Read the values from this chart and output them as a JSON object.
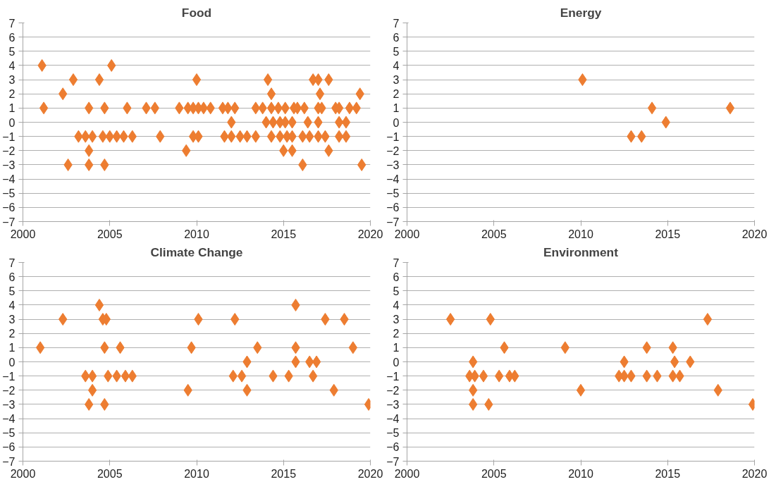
{
  "chart_data": [
    {
      "type": "scatter",
      "title": "Food",
      "marker": "diamond",
      "color": "#ed7d31",
      "grid": "y",
      "xlim": [
        2000,
        2020
      ],
      "xticks": [
        2000,
        2005,
        2010,
        2015,
        2020
      ],
      "ylim": [
        -7,
        7
      ],
      "yticks": [
        -7,
        -6,
        -5,
        -4,
        -3,
        -2,
        -1,
        0,
        1,
        2,
        3,
        4,
        5,
        6,
        7
      ],
      "x": [
        2001.1,
        2005.1,
        2002.9,
        2004.4,
        2010.0,
        2014.1,
        2016.7,
        2017.0,
        2017.6,
        2002.3,
        2014.3,
        2017.1,
        2019.4,
        2001.2,
        2003.8,
        2004.7,
        2006.0,
        2007.1,
        2007.6,
        2009.0,
        2009.5,
        2009.8,
        2010.1,
        2010.4,
        2010.8,
        2011.5,
        2011.8,
        2012.2,
        2013.4,
        2013.8,
        2014.3,
        2014.7,
        2015.1,
        2015.6,
        2015.8,
        2016.2,
        2017.0,
        2017.2,
        2018.0,
        2018.2,
        2018.8,
        2019.2,
        2012.0,
        2014.0,
        2014.4,
        2014.8,
        2015.1,
        2015.5,
        2016.4,
        2017.0,
        2018.2,
        2018.6,
        2003.2,
        2003.6,
        2004.0,
        2004.6,
        2005.0,
        2005.4,
        2005.8,
        2006.3,
        2007.9,
        2009.8,
        2010.1,
        2011.6,
        2012.0,
        2012.5,
        2012.9,
        2013.4,
        2014.3,
        2014.8,
        2015.2,
        2015.5,
        2016.1,
        2016.5,
        2017.0,
        2017.4,
        2018.2,
        2018.6,
        2003.8,
        2009.4,
        2015.0,
        2015.5,
        2017.6,
        2002.6,
        2003.8,
        2004.7,
        2016.1,
        2019.5
      ],
      "values": [
        4,
        4,
        3,
        3,
        3,
        3,
        3,
        3,
        3,
        2,
        2,
        2,
        2,
        1,
        1,
        1,
        1,
        1,
        1,
        1,
        1,
        1,
        1,
        1,
        1,
        1,
        1,
        1,
        1,
        1,
        1,
        1,
        1,
        1,
        1,
        1,
        1,
        1,
        1,
        1,
        1,
        1,
        0,
        0,
        0,
        0,
        0,
        0,
        0,
        0,
        0,
        0,
        -1,
        -1,
        -1,
        -1,
        -1,
        -1,
        -1,
        -1,
        -1,
        -1,
        -1,
        -1,
        -1,
        -1,
        -1,
        -1,
        -1,
        -1,
        -1,
        -1,
        -1,
        -1,
        -1,
        -1,
        -1,
        -1,
        -2,
        -2,
        -2,
        -2,
        -2,
        -3,
        -3,
        -3,
        -3,
        -3
      ]
    },
    {
      "type": "scatter",
      "title": "Energy",
      "marker": "diamond",
      "color": "#ed7d31",
      "grid": "y",
      "xlim": [
        2000,
        2020
      ],
      "xticks": [
        2000,
        2005,
        2010,
        2015,
        2020
      ],
      "ylim": [
        -7,
        7
      ],
      "yticks": [
        -7,
        -6,
        -5,
        -4,
        -3,
        -2,
        -1,
        0,
        1,
        2,
        3,
        4,
        5,
        6,
        7
      ],
      "x": [
        2010.1,
        2012.9,
        2013.5,
        2014.1,
        2014.9,
        2018.6
      ],
      "values": [
        3,
        -1,
        -1,
        1,
        0,
        1
      ]
    },
    {
      "type": "scatter",
      "title": "Climate Change",
      "marker": "diamond",
      "color": "#ed7d31",
      "grid": "y",
      "xlim": [
        2000,
        2020
      ],
      "xticks": [
        2000,
        2005,
        2010,
        2015,
        2020
      ],
      "ylim": [
        -7,
        7
      ],
      "yticks": [
        -7,
        -6,
        -5,
        -4,
        -3,
        -2,
        -1,
        0,
        1,
        2,
        3,
        4,
        5,
        6,
        7
      ],
      "x": [
        2004.4,
        2015.7,
        2002.3,
        2004.6,
        2004.8,
        2010.1,
        2012.2,
        2017.4,
        2018.5,
        2001.0,
        2004.7,
        2005.6,
        2009.7,
        2013.5,
        2015.7,
        2019.0,
        2012.9,
        2015.7,
        2016.5,
        2016.9,
        2003.6,
        2004.0,
        2004.9,
        2005.4,
        2005.9,
        2006.3,
        2012.1,
        2012.6,
        2014.4,
        2015.3,
        2016.7,
        2004.0,
        2009.5,
        2012.9,
        2017.9,
        2003.8,
        2004.7,
        2019.9
      ],
      "values": [
        4,
        4,
        3,
        3,
        3,
        3,
        3,
        3,
        3,
        1,
        1,
        1,
        1,
        1,
        1,
        1,
        0,
        0,
        0,
        0,
        -1,
        -1,
        -1,
        -1,
        -1,
        -1,
        -1,
        -1,
        -1,
        -1,
        -1,
        -2,
        -2,
        -2,
        -2,
        -3,
        -3,
        -3
      ]
    },
    {
      "type": "scatter",
      "title": "Environment",
      "marker": "diamond",
      "color": "#ed7d31",
      "grid": "y",
      "xlim": [
        2000,
        2020
      ],
      "xticks": [
        2000,
        2005,
        2010,
        2015,
        2020
      ],
      "ylim": [
        -7,
        7
      ],
      "yticks": [
        -7,
        -6,
        -5,
        -4,
        -3,
        -2,
        -1,
        0,
        1,
        2,
        3,
        4,
        5,
        6,
        7
      ],
      "x": [
        2002.5,
        2004.8,
        2017.3,
        2005.6,
        2009.1,
        2013.8,
        2015.3,
        2003.8,
        2012.5,
        2015.4,
        2016.3,
        2003.6,
        2003.9,
        2004.4,
        2005.3,
        2005.9,
        2006.2,
        2012.2,
        2012.5,
        2012.9,
        2013.8,
        2014.4,
        2015.3,
        2015.7,
        2003.8,
        2010.0,
        2017.9,
        2003.8,
        2004.7,
        2019.9
      ],
      "values": [
        3,
        3,
        3,
        1,
        1,
        1,
        1,
        0,
        0,
        0,
        0,
        -1,
        -1,
        -1,
        -1,
        -1,
        -1,
        -1,
        -1,
        -1,
        -1,
        -1,
        -1,
        -1,
        -2,
        -2,
        -2,
        -3,
        -3,
        -3
      ]
    }
  ]
}
